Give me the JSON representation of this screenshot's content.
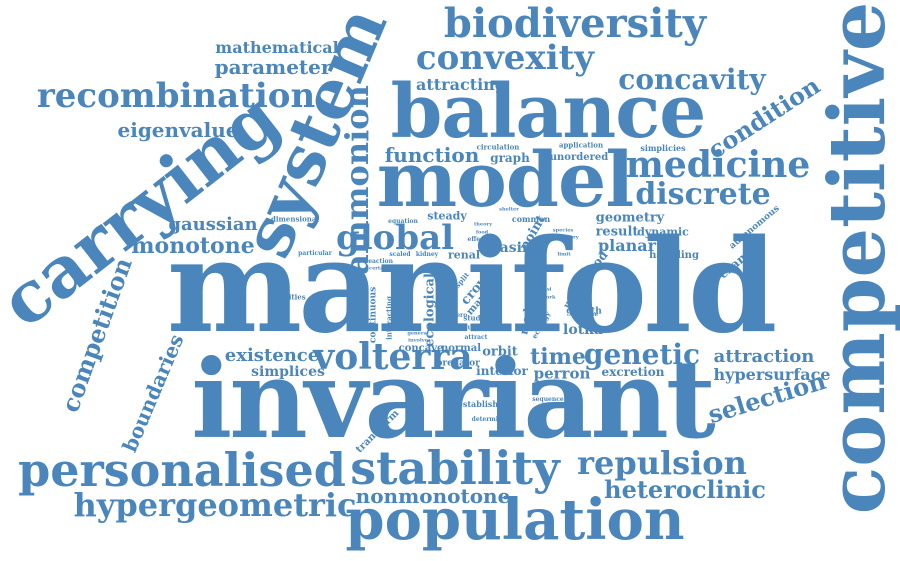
{
  "color": "#4a86bb",
  "words": {
    "manifold": "manifold",
    "invariant": "invariant",
    "competitive": "competitive",
    "balance": "balance",
    "model": "model",
    "carrying": "carrying",
    "system": "system",
    "biodiversity": "biodiversity",
    "convexity": "convexity",
    "recombination": "recombination",
    "concavity": "concavity",
    "population": "population",
    "personalised": "personalised",
    "stability": "stability",
    "volterra": "volterra",
    "hypergeometric": "hypergeometric",
    "repulsion": "repulsion",
    "heteroclinic": "heteroclinic",
    "medicine": "medicine",
    "discrete": "discrete",
    "global": "global",
    "ammonion": "ammonion",
    "genetic": "genetic",
    "selection": "selection",
    "competition": "competition",
    "monotone": "monotone",
    "nonmonotone": "nonmonotone",
    "mathematical": "mathematical",
    "parameter": "parameter",
    "eigenvalue": "eigenvalue",
    "condition": "condition",
    "function": "function",
    "attracting": "attracting",
    "gaussian": "gaussian",
    "existence": "existence",
    "boundaries": "boundaries",
    "simplices": "simplices",
    "attraction": "attraction",
    "hypersurface": "hypersurface",
    "time": "time",
    "orbit": "orbit",
    "perron": "perron",
    "interior": "interior",
    "excretion": "excretion",
    "planar": "planar",
    "result": "result",
    "dynamic": "dynamic",
    "geometry": "geometry",
    "handling": "handling",
    "example": "example",
    "autonomous": "autonomous",
    "lotka": "lotka",
    "growth": "growth",
    "graph": "graph",
    "unordered": "unordered",
    "circulation": "circulation",
    "application": "application",
    "simplicies": "simplicies",
    "steady": "steady",
    "basin": "basin",
    "point": "point",
    "ecological": "ecological",
    "crow": "crow",
    "map": "map",
    "medulla": "medulla",
    "method": "method",
    "urinary": "urinary",
    "renal": "renal",
    "concave": "concave",
    "normal": "normal",
    "predator": "predator",
    "transform": "transform",
    "establish": "establish",
    "determined": "determined",
    "densities": "densities",
    "continuous": "continuous",
    "dimensional": "dimensional",
    "particular": "particular",
    "scaled": "scaled",
    "kidney": "kidney",
    "equation": "equation",
    "common": "common",
    "study": "study",
    "curve": "curve",
    "attract": "attract",
    "zero": "zero",
    "sequence": "sequence",
    "interacting": "interacting",
    "reaction": "reaction",
    "certain": "certain",
    "ecology": "ecology",
    "split": "split",
    "volume": "volume",
    "effect": "effect",
    "theory": "theory",
    "food": "food",
    "general": "general",
    "involve": "involve",
    "shelter": "shelter",
    "species": "species",
    "trajectory": "trajectory",
    "limit": "limit",
    "quasi": "quasi",
    "network": "network"
  }
}
